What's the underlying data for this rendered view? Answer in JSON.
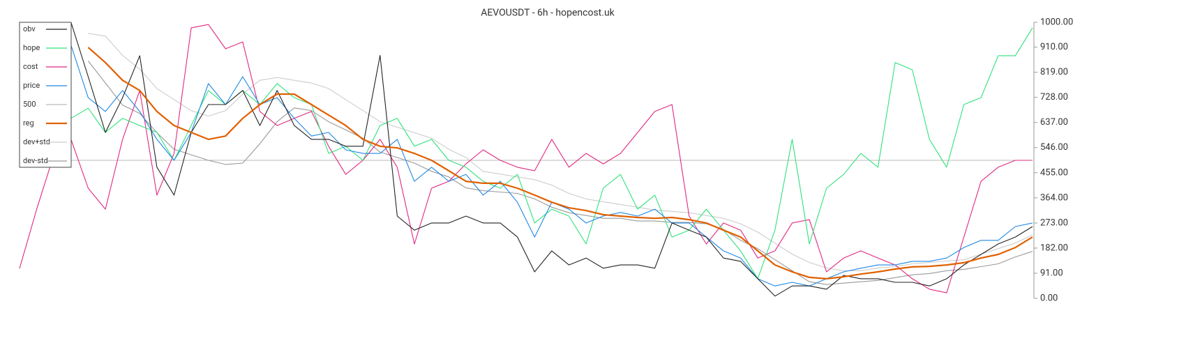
{
  "chart_data": {
    "type": "line",
    "title": "AEVOUSDT - 6h - hopencost.uk",
    "ylim": [
      0,
      1000
    ],
    "yticks": [
      {
        "value": 0,
        "label": "0.00"
      },
      {
        "value": 91,
        "label": "91.00"
      },
      {
        "value": 182,
        "label": "182.00"
      },
      {
        "value": 273,
        "label": "273.00"
      },
      {
        "value": 364,
        "label": "364.00"
      },
      {
        "value": 455,
        "label": "455.00"
      },
      {
        "value": 546,
        "label": "546.00"
      },
      {
        "value": 637,
        "label": "637.00"
      },
      {
        "value": 728,
        "label": "728.00"
      },
      {
        "value": 819,
        "label": "819.00"
      },
      {
        "value": 910,
        "label": "910.00"
      },
      {
        "value": 1000,
        "label": "1000.00"
      }
    ],
    "legend": "upper left",
    "series": [
      {
        "name": "obv",
        "color": "#222222",
        "values": [
          null,
          null,
          null,
          1000,
          803,
          601,
          727,
          879,
          475,
          374,
          601,
          702,
          702,
          753,
          626,
          753,
          626,
          576,
          576,
          551,
          551,
          880,
          298,
          247,
          273,
          273,
          298,
          273,
          273,
          222,
          96,
          172,
          121,
          146,
          109,
          121,
          121,
          109,
          273,
          247,
          222,
          146,
          134,
          71,
          8,
          45,
          45,
          33,
          83,
          71,
          71,
          58,
          58,
          45,
          71,
          121,
          159,
          197,
          222,
          260
        ]
      },
      {
        "name": "hope",
        "color": "#2ee27a",
        "values": [
          null,
          null,
          null,
          652,
          689,
          601,
          652,
          626,
          601,
          500,
          626,
          753,
          702,
          753,
          702,
          778,
          727,
          702,
          525,
          551,
          500,
          626,
          652,
          551,
          576,
          500,
          475,
          424,
          399,
          449,
          273,
          323,
          298,
          197,
          399,
          449,
          323,
          374,
          222,
          247,
          323,
          247,
          172,
          71,
          247,
          576,
          197,
          399,
          449,
          525,
          475,
          854,
          828,
          576,
          475,
          702,
          727,
          879,
          879,
          980
        ]
      },
      {
        "name": "cost",
        "color": "#e0287f",
        "values": [
          108,
          323,
          520,
          576,
          399,
          323,
          576,
          753,
          374,
          525,
          980,
          992,
          904,
          929,
          677,
          626,
          652,
          677,
          551,
          449,
          500,
          576,
          475,
          197,
          399,
          424,
          487,
          538,
          500,
          475,
          462,
          576,
          475,
          525,
          487,
          525,
          601,
          677,
          702,
          298,
          197,
          273,
          247,
          146,
          172,
          273,
          285,
          96,
          146,
          172,
          146,
          121,
          71,
          33,
          20,
          222,
          424,
          475,
          500,
          500
        ]
      },
      {
        "name": "price",
        "color": "#1e88e5",
        "values": [
          null,
          null,
          null,
          917,
          727,
          677,
          753,
          677,
          576,
          500,
          601,
          778,
          702,
          803,
          702,
          727,
          652,
          588,
          601,
          538,
          525,
          525,
          576,
          424,
          475,
          424,
          449,
          374,
          424,
          348,
          222,
          348,
          323,
          273,
          298,
          311,
          298,
          323,
          273,
          273,
          222,
          172,
          146,
          71,
          45,
          58,
          45,
          71,
          96,
          109,
          121,
          121,
          134,
          134,
          146,
          184,
          210,
          210,
          260,
          273
        ]
      },
      {
        "name": "500",
        "color": "#bbbbbb",
        "values": [
          500,
          500,
          500,
          500,
          500,
          500,
          500,
          500,
          500,
          500,
          500,
          500,
          500,
          500,
          500,
          500,
          500,
          500,
          500,
          500,
          500,
          500,
          500,
          500,
          500,
          500,
          500,
          500,
          500,
          500,
          500,
          500,
          500,
          500,
          500,
          500,
          500,
          500,
          500,
          500,
          500,
          500,
          500,
          500,
          500,
          500,
          500,
          500,
          500,
          500,
          500,
          500,
          500,
          500,
          500,
          500,
          500,
          500,
          500,
          500
        ]
      },
      {
        "name": "reg",
        "color": "#e06000",
        "values": [
          null,
          null,
          null,
          null,
          909,
          854,
          790,
          753,
          677,
          626,
          601,
          576,
          588,
          652,
          702,
          740,
          740,
          702,
          664,
          626,
          576,
          551,
          545,
          525,
          500,
          462,
          424,
          417,
          417,
          399,
          374,
          348,
          328,
          318,
          303,
          298,
          293,
          290,
          293,
          285,
          273,
          247,
          222,
          172,
          121,
          96,
          76,
          71,
          78,
          88,
          96,
          106,
          114,
          116,
          121,
          129,
          146,
          159,
          184,
          222
        ]
      },
      {
        "name": "dev+std",
        "color": "#cccccc",
        "values": [
          null,
          null,
          null,
          null,
          960,
          950,
          880,
          830,
          760,
          720,
          680,
          660,
          680,
          740,
          790,
          800,
          790,
          780,
          760,
          720,
          680,
          640,
          620,
          600,
          580,
          540,
          510,
          460,
          450,
          440,
          430,
          410,
          380,
          360,
          350,
          340,
          330,
          320,
          315,
          310,
          300,
          290,
          270,
          240,
          200,
          160,
          130,
          110,
          100,
          100,
          110,
          115,
          125,
          130,
          135,
          140,
          160,
          180,
          200,
          230
        ]
      },
      {
        "name": "dev-std",
        "color": "#999999",
        "values": [
          null,
          null,
          null,
          null,
          860,
          780,
          700,
          670,
          600,
          540,
          520,
          500,
          485,
          490,
          560,
          640,
          690,
          680,
          640,
          610,
          580,
          530,
          510,
          490,
          460,
          440,
          400,
          390,
          385,
          380,
          360,
          330,
          310,
          300,
          290,
          290,
          280,
          280,
          275,
          275,
          270,
          250,
          210,
          180,
          140,
          100,
          60,
          50,
          55,
          60,
          65,
          75,
          85,
          90,
          100,
          105,
          115,
          125,
          150,
          170
        ]
      }
    ]
  }
}
